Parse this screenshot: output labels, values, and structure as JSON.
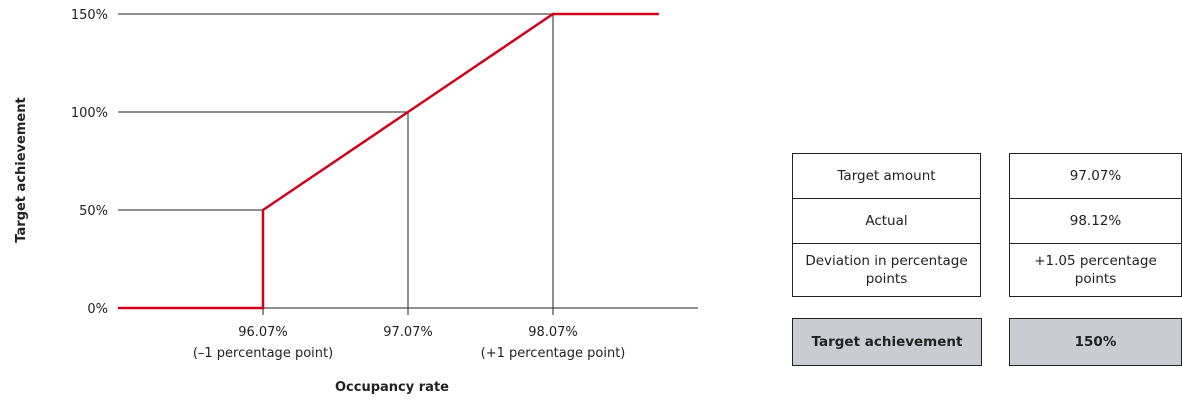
{
  "chart_data": {
    "type": "line",
    "xlabel": "Occupancy rate",
    "ylabel": "Target achievement",
    "ylim": [
      0,
      150
    ],
    "y_ticks": [
      "0%",
      "50%",
      "100%",
      "150%"
    ],
    "x_ticks": [
      {
        "value": 96.07,
        "label": "96.07%",
        "sublabel": "(–1 percentage point)"
      },
      {
        "value": 97.07,
        "label": "97.07%",
        "sublabel": ""
      },
      {
        "value": 98.07,
        "label": "98.07%",
        "sublabel": "(+1 percentage point)"
      }
    ],
    "xlim": [
      95.07,
      99.07
    ],
    "series": [
      {
        "color": "#d0021b",
        "points": [
          [
            95.07,
            0
          ],
          [
            96.07,
            0
          ],
          [
            96.07,
            50
          ],
          [
            97.07,
            100
          ],
          [
            98.07,
            150
          ],
          [
            98.8,
            150
          ]
        ]
      }
    ],
    "guide_lines": [
      {
        "x": 96.07,
        "y": 50
      },
      {
        "x": 97.07,
        "y": 100
      },
      {
        "x": 98.07,
        "y": 150
      }
    ]
  },
  "table": {
    "rows": [
      {
        "label": "Target amount",
        "value": "97.07%"
      },
      {
        "label": "Actual",
        "value": "98.12%"
      },
      {
        "label": "Deviation in percentage points",
        "value": "+1.05 percentage points"
      }
    ],
    "total": {
      "label": "Target achievement",
      "value": "150%"
    }
  }
}
